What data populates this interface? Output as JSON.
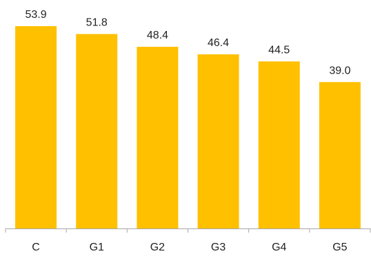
{
  "chart_data": {
    "type": "bar",
    "categories": [
      "C",
      "G1",
      "G2",
      "G3",
      "G4",
      "G5"
    ],
    "values": [
      53.9,
      51.8,
      48.4,
      46.4,
      44.5,
      39.0
    ],
    "value_labels": [
      "53.9",
      "51.8",
      "48.4",
      "46.4",
      "44.5",
      "39.0"
    ],
    "title": "",
    "xlabel": "",
    "ylabel": "",
    "ylim": [
      0,
      53.9
    ],
    "grid": false,
    "legend": "none",
    "bar_color": "#FFC000",
    "axis_color": "#A6A6A6"
  }
}
